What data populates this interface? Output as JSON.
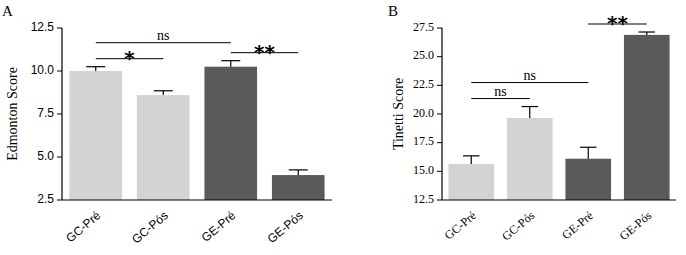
{
  "chart_data": [
    {
      "type": "bar",
      "title": "A",
      "y_label": "Edmonton Score",
      "categories": [
        "GC-Pré",
        "GC-Pós",
        "GE-Pré",
        "GE-Pós"
      ],
      "values": [
        10.0,
        8.6,
        10.25,
        3.95
      ],
      "errors": [
        0.25,
        0.25,
        0.35,
        0.3
      ],
      "colors": [
        "#d3d3d3",
        "#d3d3d3",
        "#5a5a5a",
        "#5a5a5a"
      ],
      "ylim": [
        2.5,
        12.5
      ],
      "yticks": [
        2.5,
        {
          "value": 5,
          "label": "5.0"
        },
        7.5,
        {
          "value": 10,
          "label": "10.0"
        },
        12.5
      ],
      "grid": false,
      "comparisons": [
        {
          "label": "ns",
          "between": [
            0,
            2
          ]
        },
        {
          "label": "*",
          "between": [
            0,
            1
          ]
        },
        {
          "label": "**",
          "between": [
            2,
            3
          ]
        }
      ]
    },
    {
      "type": "bar",
      "title": "B",
      "y_label": "Tinetti Score",
      "categories": [
        "GC-Pré",
        "GC-Pós",
        "GE-Pré",
        "GE-Pós"
      ],
      "values": [
        15.65,
        19.65,
        16.1,
        26.9
      ],
      "errors": [
        0.7,
        1.0,
        1.0,
        0.25
      ],
      "colors": [
        "#d3d3d3",
        "#d3d3d3",
        "#5a5a5a",
        "#5a5a5a"
      ],
      "ylim": [
        12.5,
        27.5
      ],
      "yticks": [
        12.5,
        {
          "value": 15,
          "label": "15.0"
        },
        17.5,
        {
          "value": 20,
          "label": "20.0"
        },
        22.5,
        {
          "value": 25,
          "label": "25.0"
        },
        27.5
      ],
      "grid": false,
      "comparisons": [
        {
          "label": "**",
          "between": [
            2,
            3
          ]
        },
        {
          "label": "ns",
          "between": [
            0,
            1
          ]
        },
        {
          "label": "ns",
          "between": [
            0,
            2
          ]
        }
      ]
    }
  ]
}
